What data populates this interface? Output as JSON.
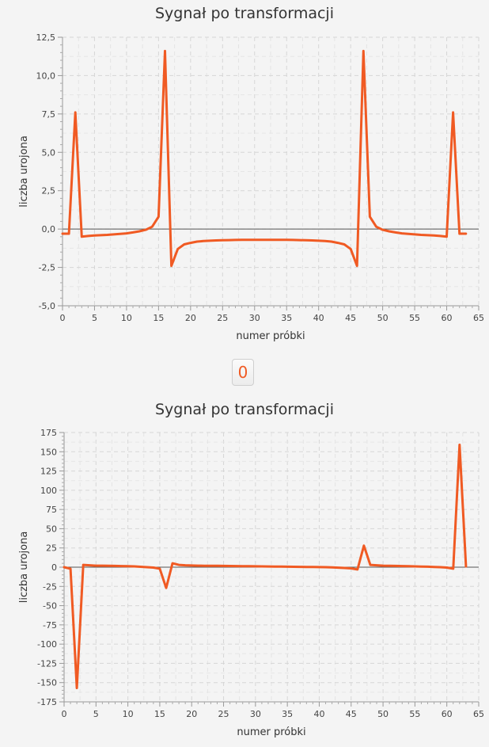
{
  "toggle": {
    "label": "0"
  },
  "chart_data": [
    {
      "type": "line",
      "title": "Sygnał po transformacji",
      "xlabel": "numer próbki",
      "ylabel": "liczba urojona",
      "xlim": [
        0,
        65
      ],
      "ylim": [
        -5,
        12.5
      ],
      "xticks": [
        0,
        5,
        10,
        15,
        20,
        25,
        30,
        35,
        40,
        45,
        50,
        55,
        60,
        65
      ],
      "xtick_labels": [
        "0",
        "5",
        "10",
        "15",
        "20",
        "25",
        "30",
        "35",
        "40",
        "45",
        "50",
        "55",
        "60",
        "65"
      ],
      "yticks": [
        -5,
        -2.5,
        0,
        2.5,
        5,
        7.5,
        10,
        12.5
      ],
      "ytick_labels": [
        "-5,0",
        "-2,5",
        "0,0",
        "2,5",
        "5,0",
        "7,5",
        "10,0",
        "12,5"
      ],
      "grid": true,
      "series_color": "#f05a23",
      "x": [
        0,
        1,
        2,
        3,
        4,
        5,
        6,
        7,
        8,
        9,
        10,
        11,
        12,
        13,
        14,
        15,
        16,
        17,
        18,
        19,
        20,
        21,
        22,
        23,
        24,
        25,
        26,
        27,
        28,
        29,
        30,
        31,
        32,
        33,
        34,
        35,
        36,
        37,
        38,
        39,
        40,
        41,
        42,
        43,
        44,
        45,
        46,
        47,
        48,
        49,
        50,
        51,
        52,
        53,
        54,
        55,
        56,
        57,
        58,
        59,
        60,
        61,
        62,
        63
      ],
      "y": [
        -0.3,
        -0.3,
        7.6,
        -0.5,
        -0.45,
        -0.42,
        -0.4,
        -0.38,
        -0.35,
        -0.32,
        -0.28,
        -0.22,
        -0.15,
        -0.05,
        0.15,
        0.8,
        11.6,
        -2.4,
        -1.3,
        -1.0,
        -0.9,
        -0.82,
        -0.78,
        -0.76,
        -0.74,
        -0.73,
        -0.72,
        -0.71,
        -0.7,
        -0.7,
        -0.7,
        -0.7,
        -0.7,
        -0.7,
        -0.7,
        -0.7,
        -0.71,
        -0.72,
        -0.73,
        -0.74,
        -0.76,
        -0.78,
        -0.82,
        -0.9,
        -1.0,
        -1.3,
        -2.4,
        11.6,
        0.8,
        0.15,
        -0.05,
        -0.15,
        -0.22,
        -0.28,
        -0.32,
        -0.35,
        -0.38,
        -0.4,
        -0.42,
        -0.45,
        -0.5,
        7.6,
        -0.3,
        -0.3
      ]
    },
    {
      "type": "line",
      "title": "Sygnał po transformacji",
      "xlabel": "numer próbki",
      "ylabel": "liczba urojona",
      "xlim": [
        0,
        65
      ],
      "ylim": [
        -175,
        175
      ],
      "xticks": [
        0,
        5,
        10,
        15,
        20,
        25,
        30,
        35,
        40,
        45,
        50,
        55,
        60,
        65
      ],
      "xtick_labels": [
        "0",
        "5",
        "10",
        "15",
        "20",
        "25",
        "30",
        "35",
        "40",
        "45",
        "50",
        "55",
        "60",
        "65"
      ],
      "yticks": [
        -175,
        -150,
        -125,
        -100,
        -75,
        -50,
        -25,
        0,
        25,
        50,
        75,
        100,
        125,
        150,
        175
      ],
      "ytick_labels": [
        "-175",
        "-150",
        "-125",
        "-100",
        "-75",
        "-50",
        "-25",
        "0",
        "25",
        "50",
        "75",
        "100",
        "125",
        "150",
        "175"
      ],
      "grid": true,
      "series_color": "#f05a23",
      "x": [
        0,
        1,
        2,
        3,
        4,
        5,
        6,
        7,
        8,
        9,
        10,
        11,
        12,
        13,
        14,
        15,
        16,
        17,
        18,
        19,
        20,
        21,
        22,
        23,
        24,
        25,
        26,
        27,
        28,
        29,
        30,
        31,
        32,
        33,
        34,
        35,
        36,
        37,
        38,
        39,
        40,
        41,
        42,
        43,
        44,
        45,
        46,
        47,
        48,
        49,
        50,
        51,
        52,
        53,
        54,
        55,
        56,
        57,
        58,
        59,
        60,
        61,
        62,
        63
      ],
      "y": [
        0,
        -2,
        -157,
        3,
        2.5,
        2,
        2,
        1.8,
        1.6,
        1.4,
        1.2,
        1,
        0.5,
        0,
        -0.5,
        -2,
        -27,
        5,
        3,
        2.5,
        2.2,
        2,
        1.9,
        1.8,
        1.7,
        1.6,
        1.5,
        1.4,
        1.3,
        1.2,
        1.1,
        1,
        0.9,
        0.8,
        0.7,
        0.6,
        0.5,
        0.4,
        0.3,
        0.2,
        0.1,
        0,
        -0.3,
        -0.6,
        -1,
        -1.5,
        -3,
        28,
        3,
        2.5,
        2,
        1.8,
        1.6,
        1.4,
        1.2,
        1,
        0.8,
        0.6,
        0.3,
        0,
        -0.5,
        -2,
        159,
        1
      ]
    }
  ]
}
